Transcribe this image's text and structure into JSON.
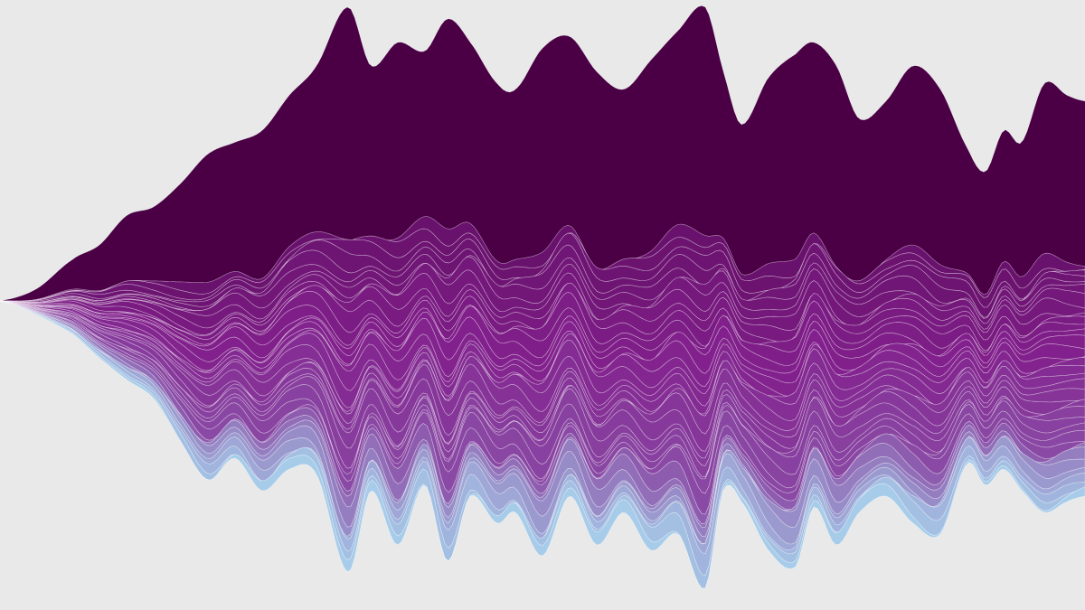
{
  "page": {
    "background": "#e9e9e9"
  },
  "chart_data": {
    "type": "area",
    "subtype": "streamgraph",
    "title": "",
    "xlabel": "",
    "ylabel": "",
    "axes_visible": false,
    "grid": false,
    "legend": "none",
    "layer_count": 40,
    "layer_separator_color": "#ffffff",
    "color_ramp": {
      "top_layer": "#4b0046",
      "middle": "#82208c",
      "lower": "#8a4aa5",
      "bottom_edge": "#a8d8f0"
    },
    "x": [
      0,
      40,
      80,
      110,
      140,
      170,
      200,
      230,
      260,
      290,
      320,
      350,
      385,
      410,
      440,
      470,
      495,
      520,
      550,
      570,
      600,
      630,
      660,
      690,
      720,
      750,
      780,
      800,
      820,
      850,
      880,
      900,
      925,
      950,
      980,
      1010,
      1040,
      1070,
      1090,
      1110,
      1130,
      1155,
      1180,
      1200
    ],
    "upper_envelope": [
      0.0,
      0.04,
      0.14,
      0.19,
      0.29,
      0.32,
      0.4,
      0.5,
      0.54,
      0.58,
      0.7,
      0.8,
      1.0,
      0.8,
      0.88,
      0.85,
      0.96,
      0.88,
      0.74,
      0.72,
      0.86,
      0.9,
      0.78,
      0.72,
      0.82,
      0.92,
      1.0,
      0.78,
      0.6,
      0.76,
      0.84,
      0.88,
      0.8,
      0.62,
      0.68,
      0.8,
      0.72,
      0.52,
      0.44,
      0.58,
      0.54,
      0.74,
      0.7,
      0.68
    ],
    "lower_envelope": [
      0.0,
      0.05,
      0.12,
      0.21,
      0.29,
      0.36,
      0.52,
      0.66,
      0.58,
      0.7,
      0.62,
      0.64,
      1.0,
      0.7,
      0.9,
      0.68,
      0.96,
      0.72,
      0.82,
      0.78,
      0.94,
      0.72,
      0.9,
      0.78,
      0.92,
      0.86,
      1.06,
      0.7,
      0.74,
      0.92,
      0.98,
      0.76,
      0.9,
      0.78,
      0.72,
      0.82,
      0.86,
      0.6,
      0.68,
      0.62,
      0.7,
      0.78,
      0.74,
      0.72
    ]
  }
}
